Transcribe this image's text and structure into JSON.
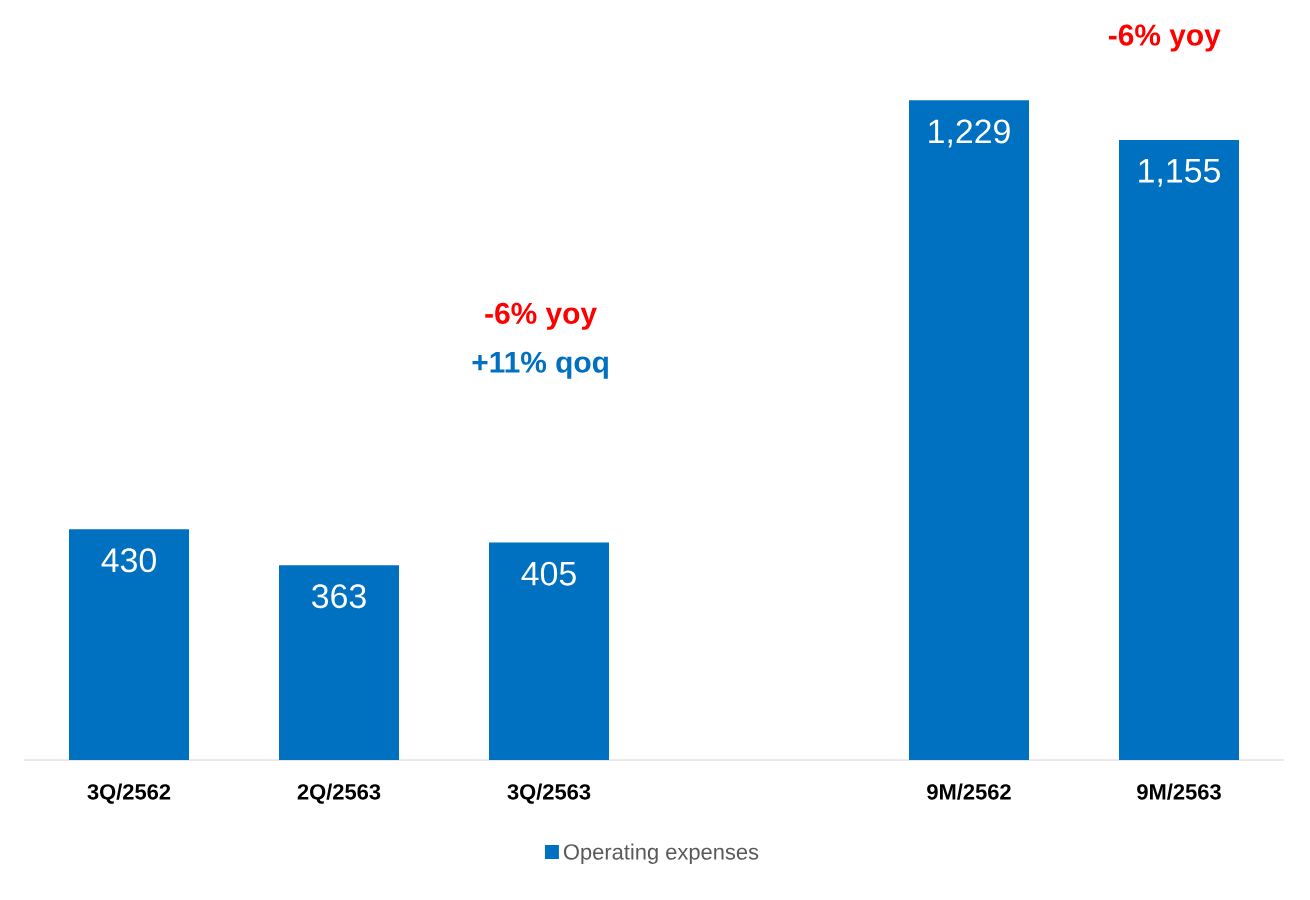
{
  "chart_data": {
    "type": "bar",
    "categories": [
      "3Q/2562",
      "2Q/2563",
      "3Q/2563",
      null,
      "9M/2562",
      "9M/2563"
    ],
    "series": [
      {
        "name": "Operating expenses",
        "color": "#0070c0",
        "values": [
          430,
          363,
          405,
          null,
          1229,
          1155
        ],
        "value_labels": [
          "430",
          "363",
          "405",
          null,
          "1,229",
          "1,155"
        ]
      }
    ],
    "legend": "bottom",
    "tick_labels": "x",
    "annotations": [
      "-6% yoy",
      "+11% qoq",
      "-6% yoy"
    ]
  }
}
